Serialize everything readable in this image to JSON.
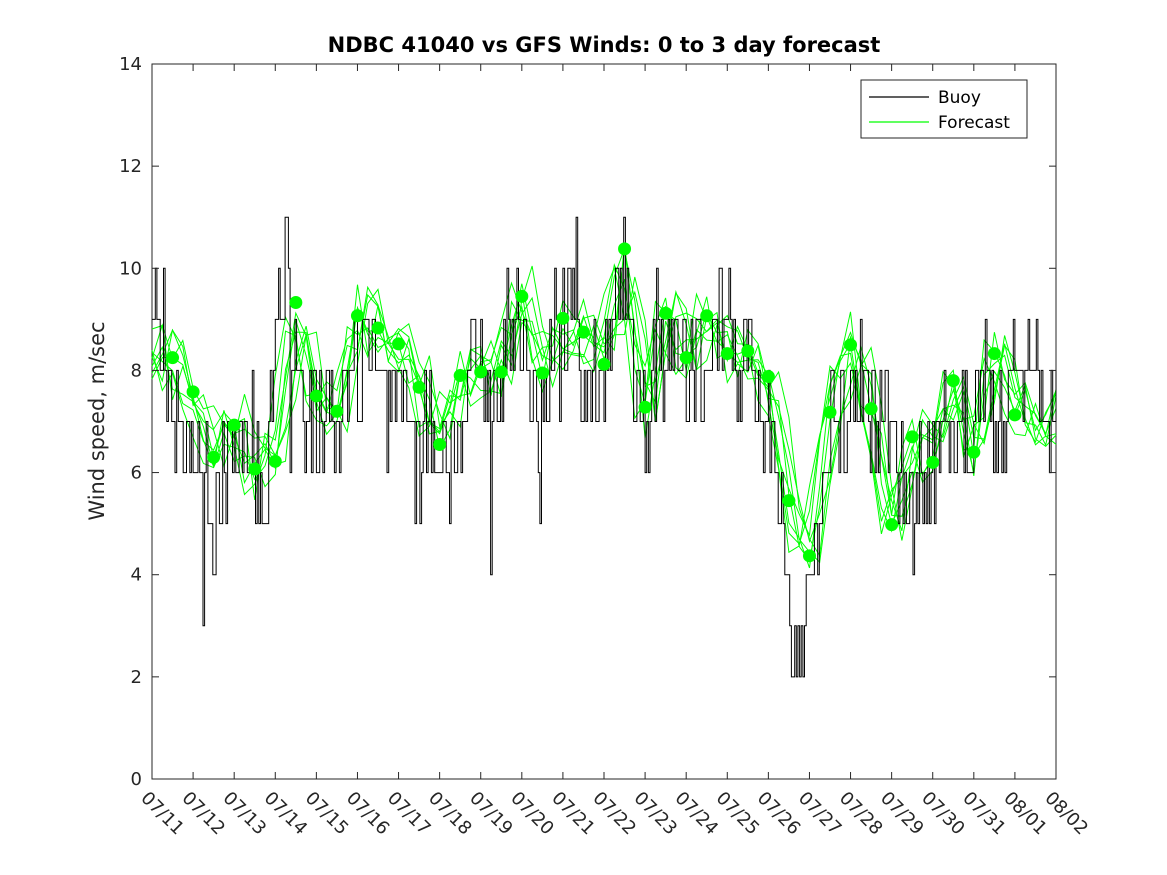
{
  "chart_data": {
    "type": "line",
    "title": "NDBC 41040 vs GFS Winds: 0 to 3 day forecast",
    "xlabel": "",
    "ylabel": "Wind speed, m/sec",
    "ylim": [
      0,
      14
    ],
    "yticks": [
      0,
      2,
      4,
      6,
      8,
      10,
      12,
      14
    ],
    "xlim_days": [
      0,
      22
    ],
    "xtick_labels": [
      "07/11",
      "07/12",
      "07/13",
      "07/14",
      "07/15",
      "07/16",
      "07/17",
      "07/18",
      "07/19",
      "07/20",
      "07/21",
      "07/22",
      "07/23",
      "07/24",
      "07/25",
      "07/26",
      "07/27",
      "07/28",
      "07/29",
      "07/30",
      "07/31",
      "08/01",
      "08/02"
    ],
    "grid": false,
    "legend_position": "top-right",
    "colors": {
      "buoy": "#000000",
      "forecast": "#00ff00"
    },
    "series": [
      {
        "name": "Buoy",
        "style": "step",
        "x": [
          0,
          0.25,
          0.5,
          0.75,
          1,
          1.25,
          1.5,
          1.75,
          2,
          2.25,
          2.5,
          2.75,
          3,
          3.25,
          3.5,
          3.75,
          4,
          4.25,
          4.5,
          4.75,
          5,
          5.25,
          5.5,
          5.75,
          6,
          6.25,
          6.5,
          6.75,
          7,
          7.25,
          7.5,
          7.75,
          8,
          8.25,
          8.5,
          8.75,
          9,
          9.25,
          9.5,
          9.75,
          10,
          10.25,
          10.5,
          10.75,
          11,
          11.25,
          11.5,
          11.75,
          12,
          12.25,
          12.5,
          12.75,
          13,
          13.25,
          13.5,
          13.75,
          14,
          14.25,
          14.5,
          14.75,
          15,
          15.25,
          15.5,
          15.75,
          16,
          16.25,
          16.5,
          16.75,
          17,
          17.25,
          17.5,
          17.75,
          18,
          18.25,
          18.5,
          18.75,
          19,
          19.25,
          19.5,
          19.75,
          20,
          20.25,
          20.5,
          20.75,
          21,
          21.25,
          21.5,
          21.75,
          22
        ],
        "values": [
          9,
          8,
          7,
          6,
          7,
          6,
          5,
          6,
          7,
          6,
          6,
          5,
          9,
          10,
          8,
          7,
          7,
          7,
          7,
          8,
          8,
          9,
          8,
          7,
          8,
          7,
          6,
          7,
          6,
          7,
          7,
          8,
          8,
          7,
          8,
          9,
          9,
          8,
          7,
          9,
          9,
          9,
          8,
          8,
          8,
          9,
          10,
          8,
          7,
          8,
          8,
          9,
          8,
          8,
          8,
          9,
          9,
          8,
          8,
          7,
          7,
          6,
          3,
          2,
          4,
          5,
          7,
          7,
          7,
          8,
          7,
          7,
          7,
          6,
          5,
          6,
          6,
          7,
          6,
          7,
          7,
          8,
          7,
          7,
          8,
          8,
          8,
          7,
          7
        ]
      },
      {
        "name": "Forecast",
        "style": "markers",
        "x": [
          0.5,
          1,
          1.5,
          2,
          2.5,
          3,
          3.5,
          4,
          4.5,
          5,
          5.5,
          6,
          6.5,
          7,
          7.5,
          8,
          8.5,
          9,
          9.5,
          10,
          10.5,
          11,
          11.5,
          12,
          12.5,
          13,
          13.5,
          14,
          14.5,
          15,
          15.5,
          16,
          16.5,
          17,
          17.5,
          18,
          18.5,
          19,
          19.5,
          20,
          20.5,
          21
        ],
        "values": [
          8.25,
          7.58,
          6.3,
          6.93,
          6.07,
          6.22,
          9.33,
          7.5,
          7.2,
          9.07,
          8.83,
          8.52,
          7.67,
          6.55,
          7.9,
          7.97,
          7.97,
          9.45,
          7.95,
          9.02,
          8.75,
          8.12,
          10.38,
          7.28,
          9.12,
          8.25,
          9.07,
          8.33,
          8.38,
          7.88,
          5.45,
          4.37,
          7.18,
          8.5,
          7.25,
          4.98,
          6.7,
          6.2,
          7.8,
          6.4,
          8.33,
          7.13
        ]
      }
    ]
  }
}
